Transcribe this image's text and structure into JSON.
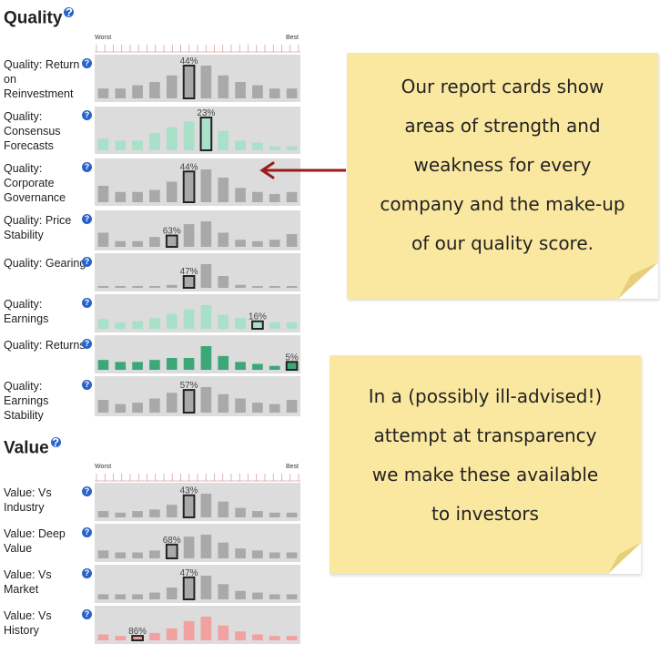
{
  "quality": {
    "title": "Quality",
    "scale": {
      "worst": "Worst",
      "best": "Best"
    },
    "rows": [
      {
        "label": "Quality: Return on Reinvestment",
        "pct": "44%",
        "values": [
          3,
          3,
          4,
          5,
          7,
          10,
          10,
          7,
          5,
          4,
          3,
          3
        ],
        "highlight": 5,
        "color": "#a9a9a9"
      },
      {
        "label": "Quality: Consensus Forecasts",
        "pct": "23%",
        "values": [
          6,
          5,
          5,
          9,
          12,
          15,
          17,
          10,
          5,
          4,
          2,
          2
        ],
        "highlight": 6,
        "color": "#a8e0c8"
      },
      {
        "label": "Quality: Corporate Governance",
        "pct": "44%",
        "values": [
          8,
          5,
          5,
          6,
          10,
          15,
          16,
          12,
          7,
          5,
          4,
          5
        ],
        "highlight": 5,
        "color": "#a9a9a9"
      },
      {
        "label": "Quality: Price Stability",
        "pct": "63%",
        "values": [
          10,
          4,
          4,
          7,
          8,
          16,
          18,
          10,
          5,
          4,
          5,
          9
        ],
        "highlight": 4,
        "color": "#a9a9a9"
      },
      {
        "label": "Quality: Gearing",
        "pct": "47%",
        "values": [
          1,
          1,
          1,
          1,
          2,
          8,
          16,
          8,
          2,
          1,
          1,
          1
        ],
        "highlight": 5,
        "color": "#a9a9a9"
      },
      {
        "label": "Quality: Earnings",
        "pct": "16%",
        "values": [
          9,
          6,
          7,
          10,
          14,
          18,
          22,
          13,
          10,
          7,
          6,
          6
        ],
        "highlight": 9,
        "color": "#a8e0c8"
      },
      {
        "label": "Quality: Returns",
        "pct": "5%",
        "values": [
          5,
          4,
          4,
          5,
          6,
          6,
          12,
          7,
          4,
          3,
          2,
          4
        ],
        "highlight": 11,
        "color": "#3da877"
      },
      {
        "label": "Quality: Earnings Stability",
        "pct": "57%",
        "values": [
          9,
          6,
          7,
          10,
          14,
          16,
          18,
          13,
          10,
          7,
          6,
          9
        ],
        "highlight": 5,
        "color": "#a9a9a9"
      }
    ]
  },
  "value": {
    "title": "Value",
    "scale": {
      "worst": "Worst",
      "best": "Best"
    },
    "rows": [
      {
        "label": "Value: Vs Industry",
        "pct": "43%",
        "values": [
          4,
          3,
          4,
          5,
          8,
          14,
          15,
          10,
          6,
          4,
          3,
          3
        ],
        "highlight": 5,
        "color": "#a9a9a9"
      },
      {
        "label": "Value: Deep Value",
        "pct": "68%",
        "values": [
          4,
          3,
          3,
          4,
          7,
          11,
          12,
          8,
          5,
          4,
          3,
          3
        ],
        "highlight": 4,
        "color": "#a9a9a9"
      },
      {
        "label": "Value: Vs Market",
        "pct": "47%",
        "values": [
          3,
          3,
          3,
          4,
          7,
          13,
          14,
          9,
          5,
          4,
          3,
          3
        ],
        "highlight": 5,
        "color": "#a9a9a9"
      },
      {
        "label": "Value: Vs History",
        "pct": "86%",
        "values": [
          4,
          3,
          3,
          5,
          8,
          13,
          16,
          10,
          6,
          4,
          3,
          3
        ],
        "highlight": 2,
        "color": "#f3a0a0"
      }
    ]
  },
  "help_glyph": "?",
  "notes": {
    "top": [
      "Our report cards show",
      "areas of strength and",
      "weakness for every",
      "company and the make-up",
      "of our quality score."
    ],
    "bottom": [
      "In a (possibly ill-advised!)",
      "attempt at transparency",
      "we make these available",
      "to investors"
    ]
  },
  "colors": {
    "arrow": "#9b1b1b",
    "note": "#fbe8a0",
    "help": "#2a62c9"
  }
}
